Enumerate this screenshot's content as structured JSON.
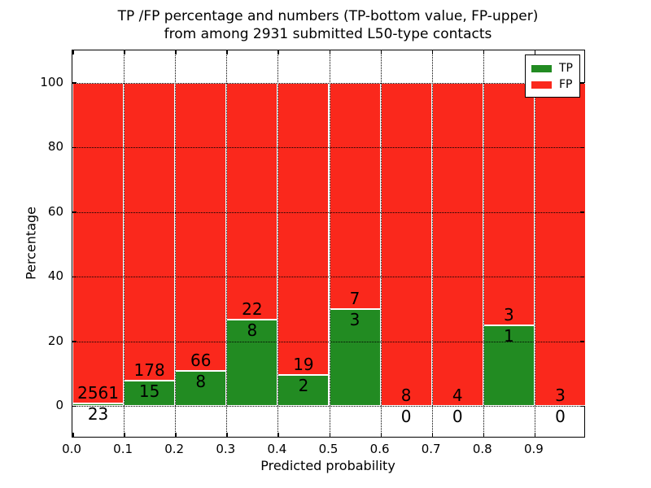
{
  "title": {
    "line1": "TP /FP percentage and numbers (TP-bottom value, FP-upper)",
    "line2": "from among 2931 submitted L50-type contacts"
  },
  "chart_data": {
    "type": "bar",
    "stacked": true,
    "orientation": "vertical",
    "title": "TP /FP percentage and numbers (TP-bottom value, FP-upper) from among 2931 submitted L50-type contacts",
    "xlabel": "Predicted probability",
    "ylabel": "Percentage",
    "total_contacts": 2931,
    "bin_edges": [
      0.0,
      0.1,
      0.2,
      0.3,
      0.4,
      0.5,
      0.6,
      0.7,
      0.8,
      0.9,
      1.0
    ],
    "series": [
      {
        "name": "TP",
        "color": "#228b22",
        "counts": [
          23,
          15,
          8,
          8,
          2,
          3,
          0,
          0,
          1,
          0
        ]
      },
      {
        "name": "FP",
        "color": "#fa281c",
        "counts": [
          2561,
          178,
          66,
          22,
          19,
          7,
          8,
          4,
          3,
          3
        ]
      }
    ],
    "tp_percent_heights": [
      0.89,
      7.77,
      10.81,
      26.67,
      9.52,
      30.0,
      0.0,
      0.0,
      25.0,
      0.0
    ],
    "bars_total_percent": 100,
    "xticks": [
      "0.0",
      "0.1",
      "0.2",
      "0.3",
      "0.4",
      "0.5",
      "0.6",
      "0.7",
      "0.8",
      "0.9"
    ],
    "yticks": [
      "0",
      "20",
      "40",
      "60",
      "80",
      "100"
    ],
    "xlim": [
      0.0,
      1.0
    ],
    "ylim": [
      -10,
      110
    ],
    "grid": {
      "style": "dotted",
      "color": "#000000",
      "on_top_of_bars": true
    },
    "bar_edge_color": "#ffffff",
    "legend": {
      "position": "upper right",
      "entries": [
        {
          "label": "TP",
          "color": "#228b22"
        },
        {
          "label": "FP",
          "color": "#fa281c"
        }
      ]
    }
  }
}
